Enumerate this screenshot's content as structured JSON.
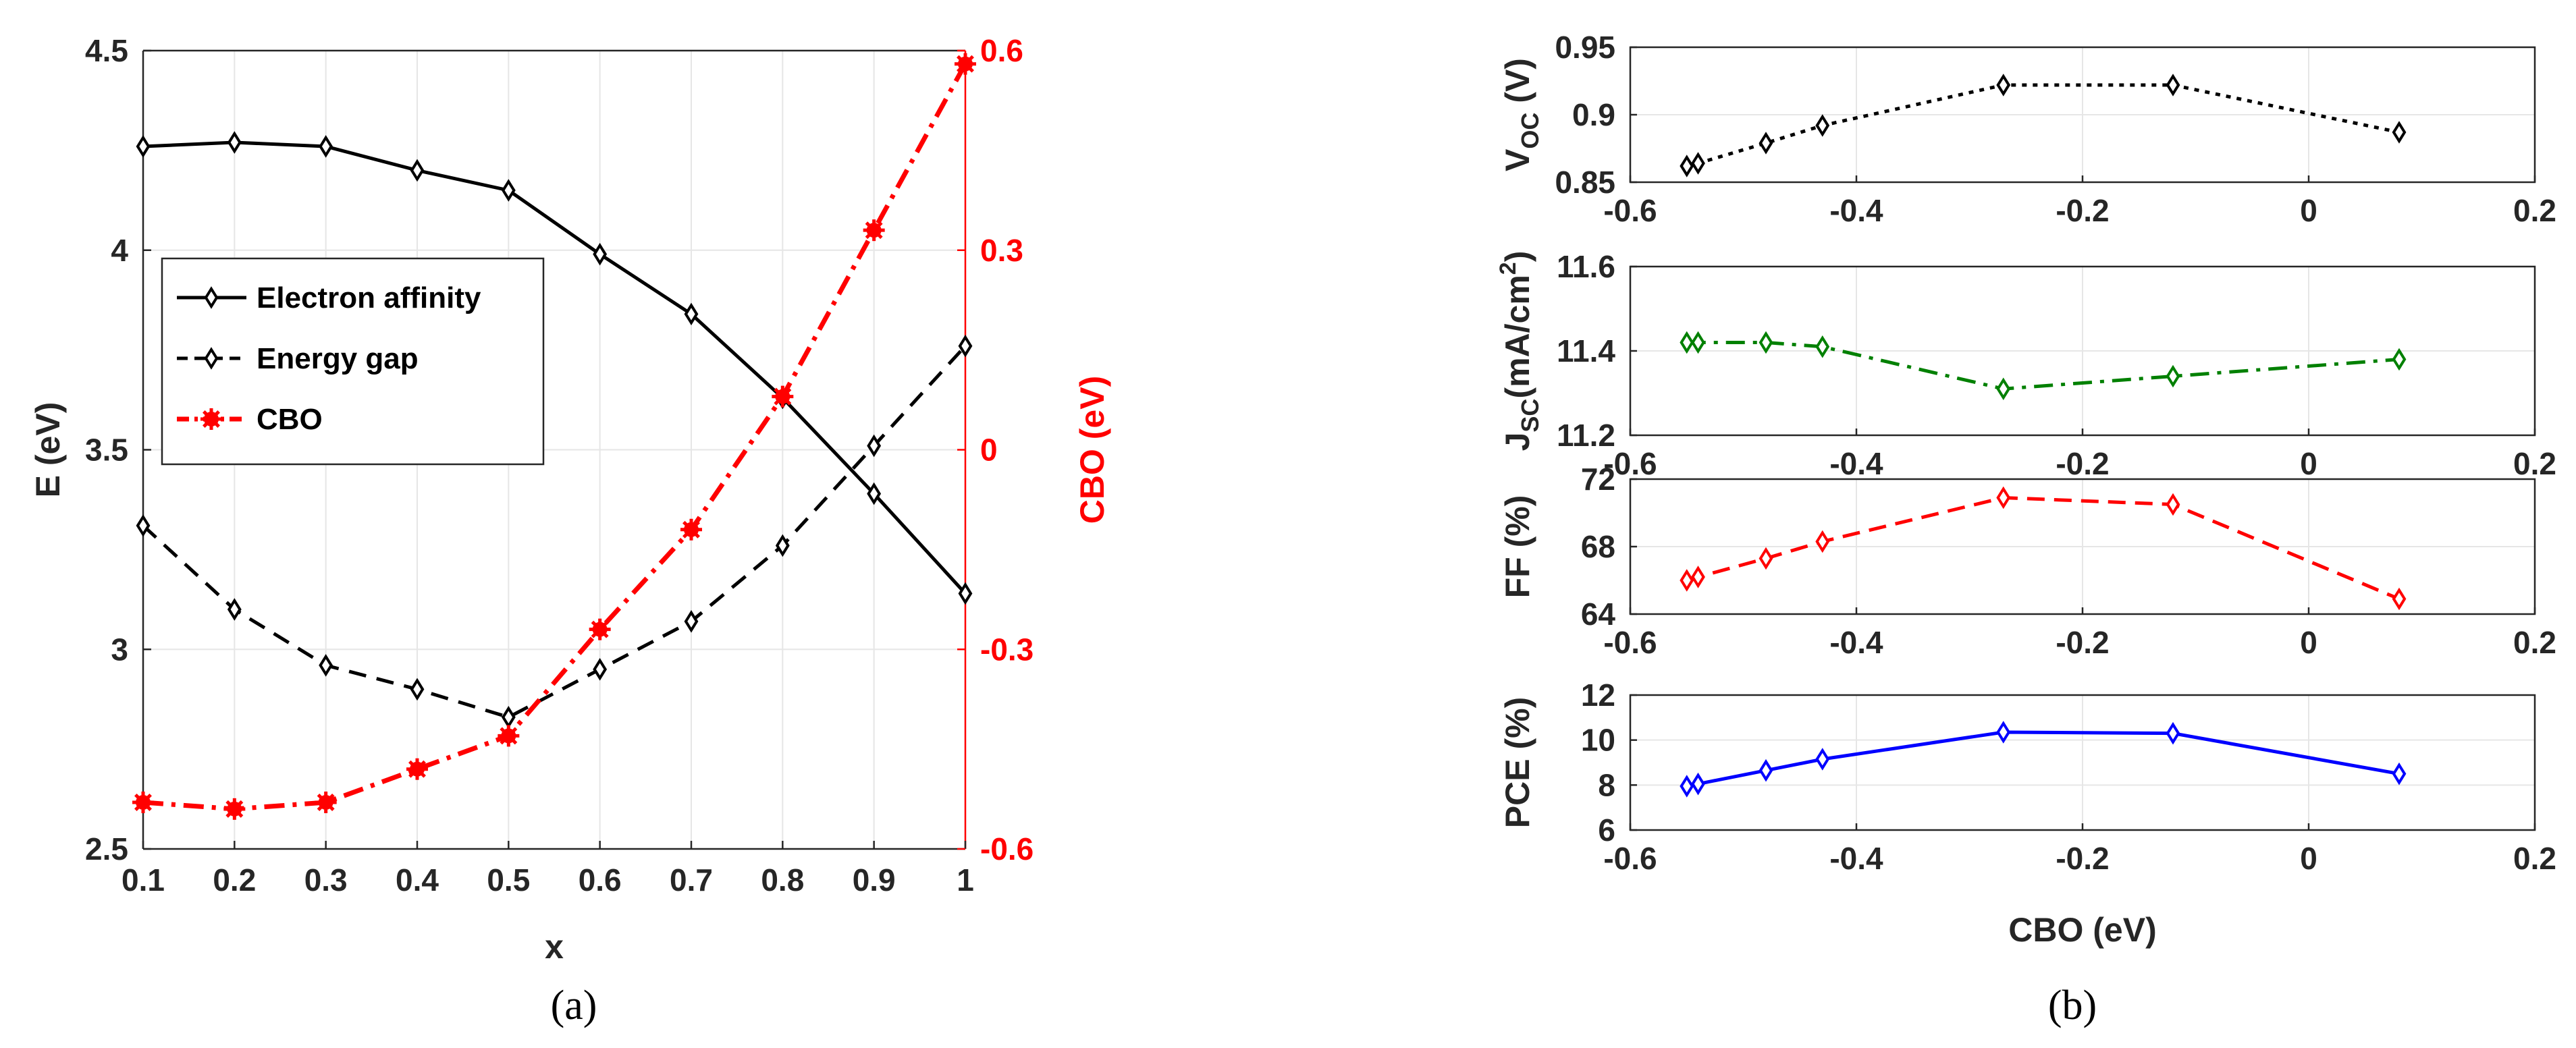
{
  "captions": {
    "a": "(a)",
    "b": "(b)"
  },
  "chart_data": [
    {
      "id": "a",
      "type": "line",
      "xlabel": "x",
      "ylabel": "E (eV)",
      "ylabel_right": "CBO (eV)",
      "xlim": [
        0.1,
        1
      ],
      "ylim": [
        2.5,
        4.5
      ],
      "ylim_right": [
        -0.6,
        0.6
      ],
      "xticks": [
        "0.1",
        "0.2",
        "0.3",
        "0.4",
        "0.5",
        "0.6",
        "0.7",
        "0.8",
        "0.9",
        "1"
      ],
      "yticks": [
        "2.5",
        "3",
        "3.5",
        "4",
        "4.5"
      ],
      "yticks_right": [
        "-0.6",
        "-0.3",
        "0",
        "0.3",
        "0.6"
      ],
      "x": [
        0.1,
        0.2,
        0.3,
        0.4,
        0.5,
        0.6,
        0.7,
        0.8,
        0.9,
        1.0
      ],
      "series": [
        {
          "name": "Electron affinity",
          "axis": "left",
          "color": "#000000",
          "values": [
            4.26,
            4.27,
            4.26,
            4.2,
            4.15,
            3.99,
            3.84,
            3.63,
            3.39,
            3.14
          ]
        },
        {
          "name": "Energy gap",
          "axis": "left",
          "color": "#000000",
          "values": [
            3.31,
            3.1,
            2.96,
            2.9,
            2.83,
            2.95,
            3.07,
            3.26,
            3.51,
            3.76
          ]
        },
        {
          "name": "CBO",
          "axis": "right",
          "color": "#ff0000",
          "values": [
            -0.53,
            -0.54,
            -0.53,
            -0.48,
            -0.43,
            -0.27,
            -0.12,
            0.08,
            0.33,
            0.58
          ]
        }
      ],
      "legend": [
        "Electron affinity",
        "Energy gap",
        "CBO"
      ],
      "legend_position": "middle-left",
      "grid": true
    },
    {
      "id": "b",
      "type": "line",
      "xlabel": "CBO (eV)",
      "xlim": [
        -0.6,
        0.2
      ],
      "xticks": [
        "-0.6",
        "-0.4",
        "-0.2",
        "0",
        "0.2"
      ],
      "x": [
        -0.55,
        -0.54,
        -0.48,
        -0.43,
        -0.27,
        -0.12,
        0.08
      ],
      "grid": true,
      "panels": [
        {
          "name": "Voc",
          "ylabel": "V_OC (V)",
          "ylabel_main": "V",
          "ylabel_sub": "OC",
          "ylabel_rest": " (V)",
          "color": "#000000",
          "dash": "dotted",
          "ylim": [
            0.85,
            0.95
          ],
          "yticks": [
            "0.85",
            "0.9",
            "0.95"
          ],
          "values": [
            0.862,
            0.864,
            0.879,
            0.892,
            0.922,
            0.922,
            0.887
          ]
        },
        {
          "name": "Jsc",
          "ylabel": "J_SC (mA/cm^2)",
          "ylabel_main": "J",
          "ylabel_sub": "SC",
          "ylabel_rest": "(mA/cm",
          "ylabel_sup": "2",
          "ylabel_end": ")",
          "color": "#008000",
          "dash": "dashdot",
          "ylim": [
            11.2,
            11.6
          ],
          "yticks": [
            "11.2",
            "11.4",
            "11.6"
          ],
          "values": [
            11.42,
            11.42,
            11.42,
            11.41,
            11.31,
            11.34,
            11.38
          ]
        },
        {
          "name": "FF",
          "ylabel": "FF (%)",
          "color": "#ff0000",
          "dash": "dashed",
          "ylim": [
            64,
            72
          ],
          "yticks": [
            "64",
            "68",
            "72"
          ],
          "values": [
            66.0,
            66.2,
            67.3,
            68.3,
            70.9,
            70.5,
            64.9
          ]
        },
        {
          "name": "PCE",
          "ylabel": "PCE (%)",
          "color": "#0000ff",
          "dash": "solid",
          "ylim": [
            6,
            12
          ],
          "yticks": [
            "6",
            "8",
            "10",
            "12"
          ],
          "values": [
            7.95,
            8.05,
            8.65,
            9.15,
            10.35,
            10.3,
            8.5
          ]
        }
      ]
    }
  ]
}
